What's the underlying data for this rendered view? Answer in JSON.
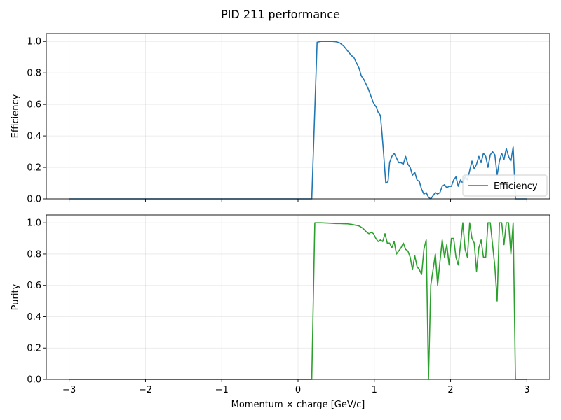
{
  "title": "PID 211 performance",
  "colors": {
    "efficiency": "#1f77b4",
    "purity": "#2ca02c"
  },
  "chart_data": [
    {
      "type": "line",
      "xlabel": "",
      "ylabel": "Efficiency",
      "xlim": [
        -3.3,
        3.3
      ],
      "ylim": [
        0,
        1.05
      ],
      "xticks": [
        -3,
        -2,
        -1,
        0,
        1,
        2,
        3
      ],
      "xtick_labels": [
        "−3",
        "−2",
        "−1",
        "0",
        "1",
        "2",
        "3"
      ],
      "yticks": [
        0.0,
        0.2,
        0.4,
        0.6,
        0.8,
        1.0
      ],
      "ytick_labels": [
        "0.0",
        "0.2",
        "0.4",
        "0.6",
        "0.8",
        "1.0"
      ],
      "grid": true,
      "legend": {
        "placement": "lower-right",
        "entries": [
          "Efficiency"
        ]
      },
      "series": [
        {
          "name": "Efficiency",
          "color": "#1f77b4",
          "points": [
            [
              -3.0,
              0.0
            ],
            [
              0.18,
              0.0
            ],
            [
              0.25,
              0.995
            ],
            [
              0.3,
              1.0
            ],
            [
              0.35,
              1.0
            ],
            [
              0.4,
              1.0
            ],
            [
              0.45,
              1.0
            ],
            [
              0.5,
              0.998
            ],
            [
              0.55,
              0.99
            ],
            [
              0.6,
              0.97
            ],
            [
              0.65,
              0.94
            ],
            [
              0.7,
              0.91
            ],
            [
              0.73,
              0.9
            ],
            [
              0.76,
              0.87
            ],
            [
              0.8,
              0.83
            ],
            [
              0.83,
              0.78
            ],
            [
              0.86,
              0.76
            ],
            [
              0.89,
              0.73
            ],
            [
              0.92,
              0.7
            ],
            [
              0.95,
              0.66
            ],
            [
              0.98,
              0.62
            ],
            [
              1.0,
              0.6
            ],
            [
              1.03,
              0.58
            ],
            [
              1.05,
              0.55
            ],
            [
              1.08,
              0.53
            ],
            [
              1.1,
              0.42
            ],
            [
              1.12,
              0.3
            ],
            [
              1.15,
              0.1
            ],
            [
              1.18,
              0.11
            ],
            [
              1.2,
              0.23
            ],
            [
              1.23,
              0.27
            ],
            [
              1.26,
              0.29
            ],
            [
              1.29,
              0.26
            ],
            [
              1.32,
              0.23
            ],
            [
              1.35,
              0.23
            ],
            [
              1.38,
              0.22
            ],
            [
              1.41,
              0.27
            ],
            [
              1.44,
              0.22
            ],
            [
              1.47,
              0.2
            ],
            [
              1.5,
              0.15
            ],
            [
              1.53,
              0.17
            ],
            [
              1.56,
              0.12
            ],
            [
              1.59,
              0.11
            ],
            [
              1.62,
              0.06
            ],
            [
              1.65,
              0.03
            ],
            [
              1.68,
              0.04
            ],
            [
              1.71,
              0.01
            ],
            [
              1.74,
              0.0
            ],
            [
              1.77,
              0.02
            ],
            [
              1.8,
              0.04
            ],
            [
              1.83,
              0.03
            ],
            [
              1.86,
              0.04
            ],
            [
              1.89,
              0.08
            ],
            [
              1.92,
              0.09
            ],
            [
              1.95,
              0.07
            ],
            [
              1.98,
              0.08
            ],
            [
              2.01,
              0.08
            ],
            [
              2.04,
              0.12
            ],
            [
              2.07,
              0.14
            ],
            [
              2.1,
              0.08
            ],
            [
              2.13,
              0.12
            ],
            [
              2.16,
              0.1
            ],
            [
              2.19,
              0.14
            ],
            [
              2.22,
              0.12
            ],
            [
              2.25,
              0.18
            ],
            [
              2.28,
              0.24
            ],
            [
              2.31,
              0.19
            ],
            [
              2.34,
              0.22
            ],
            [
              2.37,
              0.27
            ],
            [
              2.4,
              0.23
            ],
            [
              2.43,
              0.29
            ],
            [
              2.46,
              0.27
            ],
            [
              2.49,
              0.2
            ],
            [
              2.52,
              0.28
            ],
            [
              2.55,
              0.3
            ],
            [
              2.58,
              0.28
            ],
            [
              2.61,
              0.15
            ],
            [
              2.64,
              0.24
            ],
            [
              2.67,
              0.29
            ],
            [
              2.7,
              0.25
            ],
            [
              2.73,
              0.32
            ],
            [
              2.76,
              0.27
            ],
            [
              2.79,
              0.24
            ],
            [
              2.82,
              0.33
            ],
            [
              2.85,
              0.0
            ],
            [
              3.0,
              0.0
            ]
          ]
        }
      ]
    },
    {
      "type": "line",
      "xlabel": "Momentum × charge [GeV/c]",
      "ylabel": "Purity",
      "xlim": [
        -3.3,
        3.3
      ],
      "ylim": [
        0,
        1.05
      ],
      "xticks": [
        -3,
        -2,
        -1,
        0,
        1,
        2,
        3
      ],
      "xtick_labels": [
        "−3",
        "−2",
        "−1",
        "0",
        "1",
        "2",
        "3"
      ],
      "yticks": [
        0.0,
        0.2,
        0.4,
        0.6,
        0.8,
        1.0
      ],
      "ytick_labels": [
        "0.0",
        "0.2",
        "0.4",
        "0.6",
        "0.8",
        "1.0"
      ],
      "grid": true,
      "series": [
        {
          "name": "Purity",
          "color": "#2ca02c",
          "points": [
            [
              -3.0,
              0.0
            ],
            [
              0.18,
              0.0
            ],
            [
              0.22,
              1.0
            ],
            [
              0.3,
              1.0
            ],
            [
              0.4,
              0.998
            ],
            [
              0.5,
              0.995
            ],
            [
              0.55,
              0.995
            ],
            [
              0.6,
              0.994
            ],
            [
              0.65,
              0.993
            ],
            [
              0.7,
              0.99
            ],
            [
              0.75,
              0.985
            ],
            [
              0.8,
              0.98
            ],
            [
              0.85,
              0.965
            ],
            [
              0.9,
              0.94
            ],
            [
              0.93,
              0.93
            ],
            [
              0.96,
              0.94
            ],
            [
              0.99,
              0.93
            ],
            [
              1.02,
              0.9
            ],
            [
              1.05,
              0.88
            ],
            [
              1.08,
              0.89
            ],
            [
              1.11,
              0.88
            ],
            [
              1.14,
              0.93
            ],
            [
              1.17,
              0.87
            ],
            [
              1.2,
              0.87
            ],
            [
              1.23,
              0.84
            ],
            [
              1.26,
              0.88
            ],
            [
              1.29,
              0.8
            ],
            [
              1.32,
              0.82
            ],
            [
              1.35,
              0.84
            ],
            [
              1.38,
              0.87
            ],
            [
              1.41,
              0.83
            ],
            [
              1.44,
              0.82
            ],
            [
              1.47,
              0.78
            ],
            [
              1.5,
              0.7
            ],
            [
              1.53,
              0.79
            ],
            [
              1.56,
              0.72
            ],
            [
              1.59,
              0.7
            ],
            [
              1.62,
              0.67
            ],
            [
              1.65,
              0.83
            ],
            [
              1.68,
              0.89
            ],
            [
              1.71,
              0.0
            ],
            [
              1.74,
              0.6
            ],
            [
              1.77,
              0.7
            ],
            [
              1.8,
              0.8
            ],
            [
              1.83,
              0.6
            ],
            [
              1.86,
              0.75
            ],
            [
              1.89,
              0.89
            ],
            [
              1.92,
              0.78
            ],
            [
              1.95,
              0.86
            ],
            [
              1.98,
              0.73
            ],
            [
              2.01,
              0.9
            ],
            [
              2.04,
              0.9
            ],
            [
              2.07,
              0.78
            ],
            [
              2.1,
              0.73
            ],
            [
              2.13,
              0.86
            ],
            [
              2.16,
              1.0
            ],
            [
              2.19,
              0.83
            ],
            [
              2.22,
              0.78
            ],
            [
              2.25,
              1.0
            ],
            [
              2.28,
              0.9
            ],
            [
              2.31,
              0.87
            ],
            [
              2.34,
              0.69
            ],
            [
              2.37,
              0.84
            ],
            [
              2.4,
              0.89
            ],
            [
              2.43,
              0.78
            ],
            [
              2.46,
              0.78
            ],
            [
              2.49,
              1.0
            ],
            [
              2.52,
              1.0
            ],
            [
              2.55,
              0.86
            ],
            [
              2.58,
              0.72
            ],
            [
              2.61,
              0.5
            ],
            [
              2.64,
              1.0
            ],
            [
              2.67,
              1.0
            ],
            [
              2.7,
              0.86
            ],
            [
              2.73,
              1.0
            ],
            [
              2.76,
              1.0
            ],
            [
              2.79,
              0.8
            ],
            [
              2.82,
              1.0
            ],
            [
              2.85,
              0.0
            ],
            [
              3.0,
              0.0
            ]
          ]
        }
      ]
    }
  ]
}
